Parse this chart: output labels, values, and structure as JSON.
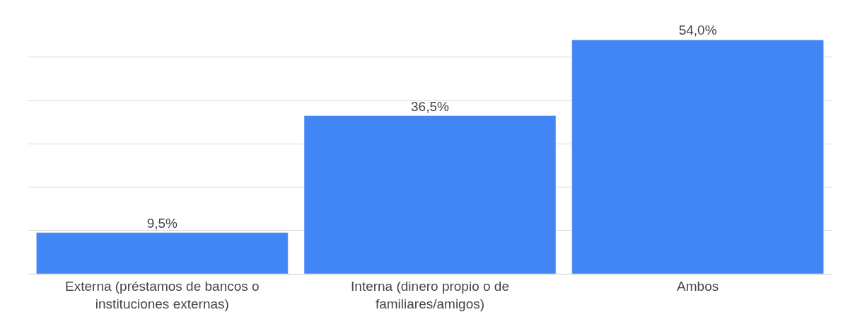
{
  "chart_data": {
    "type": "bar",
    "categories": [
      "Externa (préstamos de bancos o instituciones externas)",
      "Interna (dinero propio o de familiares/amigos)",
      "Ambos"
    ],
    "values": [
      9.5,
      36.5,
      54.0
    ],
    "value_labels": [
      "9,5%",
      "36,5%",
      "54,0%"
    ],
    "color": "#4285f4",
    "grid": "y",
    "tick_labels": "x",
    "legend": false
  }
}
